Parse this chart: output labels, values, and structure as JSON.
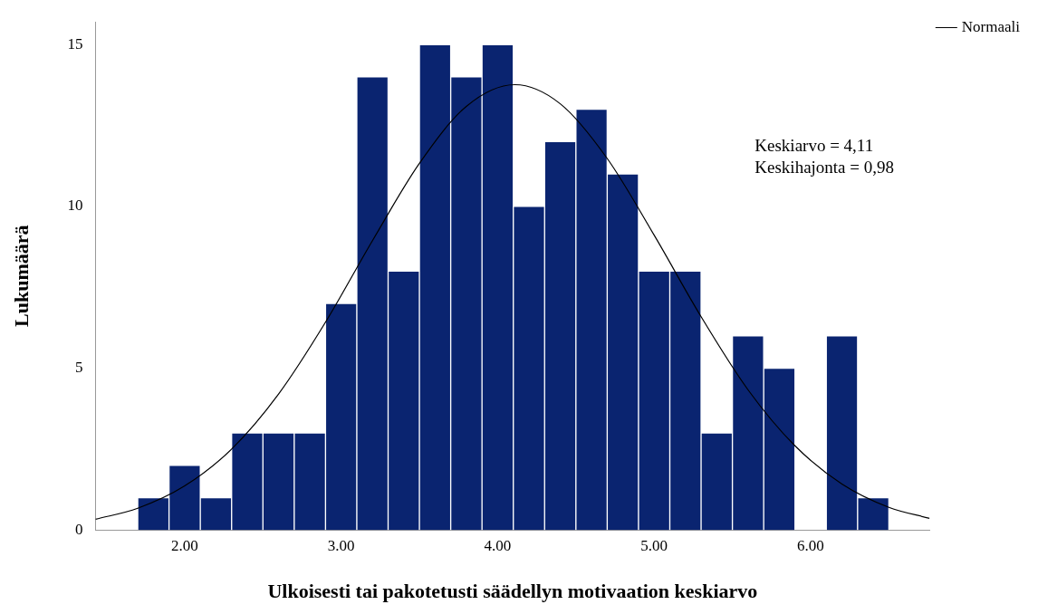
{
  "chart_data": {
    "type": "histogram",
    "xlabel": "Ulkoisesti tai pakotetusti säädellyn motivaation keskiarvo",
    "ylabel": "Lukumäärä",
    "bins": [
      1.7,
      1.9,
      2.1,
      2.3,
      2.5,
      2.7,
      2.9,
      3.1,
      3.3,
      3.5,
      3.7,
      3.9,
      4.1,
      4.3,
      4.5,
      4.7,
      4.9,
      5.1,
      5.3,
      5.5,
      5.7,
      5.9,
      6.1,
      6.3,
      6.5
    ],
    "values": [
      1,
      2,
      1,
      3,
      3,
      3,
      7,
      14,
      8,
      15,
      14,
      15,
      10,
      12,
      13,
      11,
      8,
      8,
      3,
      6,
      5,
      0,
      6,
      1
    ],
    "color": "#0a2470",
    "series": [
      {
        "name": "Normaali",
        "type": "line",
        "color": "#000000",
        "x": [
          1.43,
          1.7,
          2.0,
          2.3,
          2.6,
          2.9,
          3.2,
          3.5,
          3.8,
          4.11,
          4.4,
          4.7,
          5.0,
          5.3,
          5.6,
          5.9,
          6.2,
          6.5,
          6.76
        ],
        "values": [
          0.33,
          0.67,
          1.36,
          2.5,
          4.2,
          6.42,
          8.94,
          11.33,
          13.09,
          13.76,
          13.17,
          11.48,
          9.11,
          6.59,
          4.33,
          2.6,
          1.42,
          0.7,
          0.36
        ]
      }
    ],
    "annotations": [
      "Keskiarvo = 4,11",
      "Keskihajonta = 0,98"
    ],
    "xlim": [
      1.43,
      6.76
    ],
    "ylim": [
      0,
      15.7
    ],
    "xticks": [
      {
        "value": 2,
        "label": "2.00"
      },
      {
        "value": 3,
        "label": "3.00"
      },
      {
        "value": 4,
        "label": "4.00"
      },
      {
        "value": 5,
        "label": "5.00"
      },
      {
        "value": 6,
        "label": "6.00"
      }
    ],
    "yticks": [
      0,
      5,
      10,
      15
    ],
    "grid": false,
    "legend": "top right",
    "marker": "none",
    "line_style": "solid"
  }
}
